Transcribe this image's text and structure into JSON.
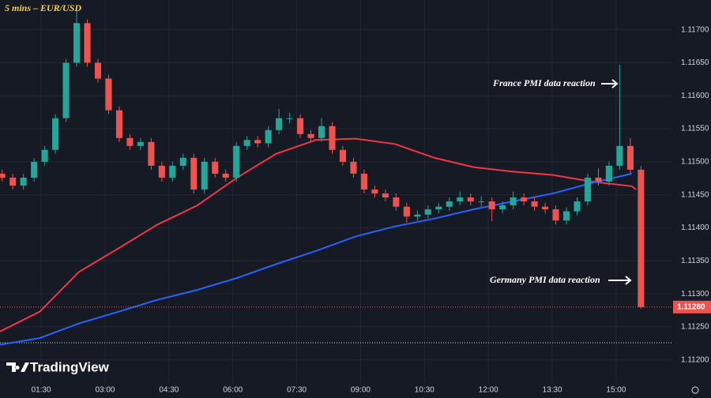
{
  "chart_data": {
    "type": "candlestick",
    "title": "5 mins – EUR/USD",
    "watermark": "TradingView",
    "x": [
      35,
      50,
      65,
      80,
      95,
      110,
      125,
      140,
      155,
      170,
      185,
      200,
      215,
      230,
      245,
      260,
      275,
      290,
      305,
      320,
      335,
      350,
      365,
      380,
      395,
      410,
      425,
      440,
      455,
      470,
      485,
      500,
      515,
      530,
      545,
      560,
      575,
      590,
      605,
      620,
      635,
      650,
      665,
      680,
      695,
      710,
      725,
      740,
      755,
      770,
      785,
      800,
      815,
      830,
      845,
      860,
      875,
      890,
      905,
      920,
      935
    ],
    "open": [
      1.11482,
      1.11476,
      1.11464,
      1.11476,
      1.115,
      1.11518,
      1.11566,
      1.1165,
      1.1171,
      1.1165,
      1.11626,
      1.11578,
      1.11536,
      1.11524,
      1.1153,
      1.11494,
      1.11476,
      1.11494,
      1.11506,
      1.11458,
      1.115,
      1.11482,
      1.11476,
      1.11524,
      1.11533,
      1.11528,
      1.11548,
      1.11566,
      1.11566,
      1.11542,
      1.11536,
      1.11554,
      1.11518,
      1.115,
      1.11482,
      1.11458,
      1.11452,
      1.11446,
      1.11432,
      1.11417,
      1.1142,
      1.11428,
      1.11432,
      1.1144,
      1.11446,
      1.1144,
      1.1144,
      1.11428,
      1.11434,
      1.11446,
      1.1144,
      1.11432,
      1.11428,
      1.11411,
      1.11425,
      1.1144,
      1.11476,
      1.1147,
      1.11494,
      1.11524,
      1.11488
    ],
    "high": [
      1.11488,
      1.11482,
      1.11482,
      1.11506,
      1.11524,
      1.11572,
      1.11656,
      1.1173,
      1.11716,
      1.11656,
      1.11632,
      1.11584,
      1.11542,
      1.11536,
      1.11536,
      1.115,
      1.115,
      1.11512,
      1.11512,
      1.11506,
      1.11506,
      1.11488,
      1.1153,
      1.11539,
      1.11539,
      1.11554,
      1.1158,
      1.11574,
      1.11572,
      1.11548,
      1.11566,
      1.1156,
      1.11524,
      1.11506,
      1.11488,
      1.11464,
      1.11458,
      1.11452,
      1.11438,
      1.11426,
      1.11434,
      1.11438,
      1.11446,
      1.11455,
      1.11452,
      1.11448,
      1.11446,
      1.1144,
      1.11455,
      1.11452,
      1.11446,
      1.11438,
      1.11434,
      1.11431,
      1.11446,
      1.11482,
      1.1149,
      1.115,
      1.11647,
      1.11536,
      1.11494
    ],
    "low": [
      1.1147,
      1.11458,
      1.11458,
      1.1147,
      1.11494,
      1.11512,
      1.1156,
      1.11644,
      1.11644,
      1.1162,
      1.11572,
      1.1153,
      1.11518,
      1.11518,
      1.11488,
      1.1147,
      1.1147,
      1.11488,
      1.11452,
      1.11452,
      1.11476,
      1.1147,
      1.1147,
      1.11518,
      1.11522,
      1.11522,
      1.11542,
      1.11558,
      1.11536,
      1.1153,
      1.1153,
      1.11512,
      1.11494,
      1.11476,
      1.11452,
      1.11446,
      1.1144,
      1.11426,
      1.11408,
      1.11411,
      1.11414,
      1.11422,
      1.11426,
      1.11434,
      1.11434,
      1.11432,
      1.1141,
      1.11422,
      1.11428,
      1.11434,
      1.11426,
      1.11422,
      1.11405,
      1.11405,
      1.11419,
      1.11434,
      1.11464,
      1.11464,
      1.11488,
      1.11482,
      1.11278
    ],
    "close": [
      1.11476,
      1.11464,
      1.11476,
      1.115,
      1.11518,
      1.11566,
      1.1165,
      1.1171,
      1.1165,
      1.11626,
      1.11578,
      1.11536,
      1.11524,
      1.1153,
      1.11494,
      1.11476,
      1.11494,
      1.11506,
      1.11458,
      1.115,
      1.11482,
      1.11476,
      1.11524,
      1.11533,
      1.11528,
      1.11548,
      1.11566,
      1.11566,
      1.11542,
      1.11536,
      1.11554,
      1.11518,
      1.115,
      1.11482,
      1.11458,
      1.11452,
      1.11446,
      1.11432,
      1.11417,
      1.1142,
      1.11428,
      1.11432,
      1.1144,
      1.11446,
      1.1144,
      1.1144,
      1.11428,
      1.11434,
      1.11446,
      1.1144,
      1.11432,
      1.11428,
      1.11411,
      1.11425,
      1.1144,
      1.11476,
      1.1147,
      1.11494,
      1.11524,
      1.11488,
      1.1128
    ],
    "up_color": "#26a69a",
    "down_color": "#ef5350",
    "lines": [
      {
        "color": "#f23645",
        "x": [
          32,
          88,
          143,
          199,
          254,
          310,
          366,
          421,
          477,
          533,
          588,
          644,
          699,
          755,
          811,
          866,
          922,
          928
        ],
        "values": [
          1.11243,
          1.11273,
          1.11333,
          1.11369,
          1.11405,
          1.11434,
          1.11476,
          1.11512,
          1.11533,
          1.11535,
          1.11527,
          1.11506,
          1.11492,
          1.11485,
          1.1148,
          1.1147,
          1.11463,
          1.11458
        ]
      },
      {
        "color": "#2962ff",
        "x": [
          32,
          88,
          143,
          199,
          254,
          310,
          366,
          421,
          477,
          533,
          588,
          644,
          699,
          755,
          811,
          866,
          922
        ],
        "values": [
          1.11223,
          1.11233,
          1.11255,
          1.11273,
          1.11291,
          1.11306,
          1.11324,
          1.11345,
          1.11365,
          1.11387,
          1.11402,
          1.11414,
          1.11428,
          1.1144,
          1.11452,
          1.11468,
          1.11482
        ]
      }
    ],
    "last_price": {
      "value": 1.1128,
      "label": "1.11280"
    },
    "price_line": 1.11226,
    "annotations": [
      "France PMI data reaction",
      "Germany PMI data reaction"
    ],
    "xlim": [
      32,
      978
    ],
    "xticks": [
      {
        "value": 90,
        "label": "01:30"
      },
      {
        "value": 180,
        "label": "03:00"
      },
      {
        "value": 270,
        "label": "04:30"
      },
      {
        "value": 360,
        "label": "06:00"
      },
      {
        "value": 450,
        "label": "07:30"
      },
      {
        "value": 540,
        "label": "09:00"
      },
      {
        "value": 630,
        "label": "10:30"
      },
      {
        "value": 720,
        "label": "12:00"
      },
      {
        "value": 810,
        "label": "13:30"
      },
      {
        "value": 900,
        "label": "15:00"
      }
    ],
    "ylim": [
      1.11165,
      1.11745
    ],
    "yticks": [
      {
        "value": 1.112,
        "label": "1.11200"
      },
      {
        "value": 1.1125,
        "label": "1.11250"
      },
      {
        "value": 1.113,
        "label": "1.11300"
      },
      {
        "value": 1.1135,
        "label": "1.11350"
      },
      {
        "value": 1.114,
        "label": "1.11400"
      },
      {
        "value": 1.1145,
        "label": "1.11450"
      },
      {
        "value": 1.115,
        "label": "1.11500"
      },
      {
        "value": 1.1155,
        "label": "1.11550"
      },
      {
        "value": 1.116,
        "label": "1.11600"
      },
      {
        "value": 1.1165,
        "label": "1.11650"
      },
      {
        "value": 1.117,
        "label": "1.11700"
      }
    ],
    "grid": true
  }
}
